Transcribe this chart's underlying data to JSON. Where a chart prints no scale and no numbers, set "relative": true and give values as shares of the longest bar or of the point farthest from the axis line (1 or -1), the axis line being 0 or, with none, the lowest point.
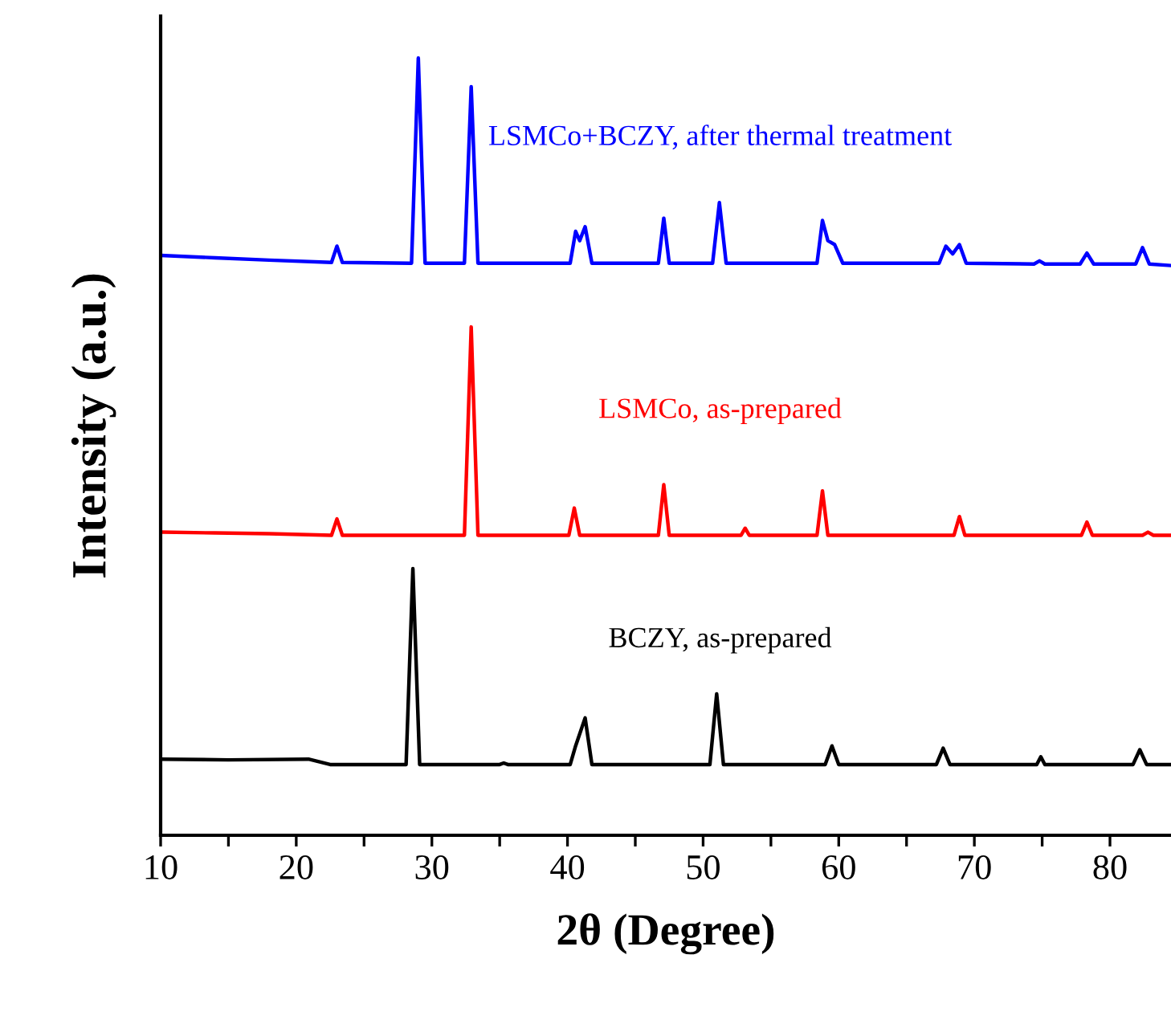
{
  "chart_data": {
    "type": "line",
    "relative": true,
    "xlabel": "2θ (Degree)",
    "ylabel": "Intensity (a.u.)",
    "xlim": [
      10,
      84.5
    ],
    "xticks": [
      10,
      {
        "value": 15,
        "label": null
      },
      20,
      {
        "value": 25,
        "label": null
      },
      30,
      {
        "value": 35,
        "label": null
      },
      40,
      {
        "value": 45,
        "label": null
      },
      50,
      {
        "value": 55,
        "label": null
      },
      60,
      {
        "value": 65,
        "label": null
      },
      70,
      {
        "value": 75,
        "label": null
      },
      80
    ],
    "tick_labels": "x",
    "grid": false,
    "legend": false,
    "marker": "none",
    "line_style": "solid",
    "series": [
      {
        "name": "LSMCo+BCZY, after thermal treatment",
        "color": "#0000ff",
        "x": [
          10,
          14,
          18,
          22.6,
          23.0,
          23.4,
          28.5,
          29.0,
          29.5,
          32.4,
          32.9,
          33.4,
          40.2,
          40.6,
          40.9,
          41.3,
          41.8,
          46.7,
          47.1,
          47.5,
          50.7,
          51.2,
          51.7,
          58.4,
          58.8,
          59.2,
          59.7,
          60.3,
          67.4,
          67.9,
          68.4,
          68.9,
          69.4,
          74.4,
          74.8,
          75.2,
          77.8,
          78.3,
          78.8,
          81.9,
          82.4,
          82.9,
          84.5
        ],
        "values": [
          0.746,
          0.743,
          0.74,
          0.737,
          0.758,
          0.737,
          0.736,
          1.0,
          0.736,
          0.736,
          0.963,
          0.736,
          0.736,
          0.777,
          0.765,
          0.783,
          0.736,
          0.736,
          0.794,
          0.736,
          0.736,
          0.814,
          0.736,
          0.736,
          0.791,
          0.765,
          0.76,
          0.736,
          0.736,
          0.758,
          0.748,
          0.76,
          0.736,
          0.735,
          0.739,
          0.735,
          0.735,
          0.749,
          0.735,
          0.735,
          0.756,
          0.735,
          0.733
        ]
      },
      {
        "name": "LSMCo, as-prepared",
        "color": "#ff0000",
        "x": [
          10,
          14,
          18,
          22.6,
          23.0,
          23.4,
          32.4,
          32.9,
          33.4,
          40.1,
          40.5,
          40.9,
          46.7,
          47.1,
          47.5,
          52.8,
          53.1,
          53.4,
          58.4,
          58.8,
          59.2,
          68.5,
          68.9,
          69.3,
          77.9,
          78.3,
          78.7,
          82.4,
          82.8,
          83.2,
          84.5
        ],
        "values": [
          0.39,
          0.389,
          0.388,
          0.386,
          0.407,
          0.386,
          0.386,
          0.654,
          0.386,
          0.386,
          0.421,
          0.386,
          0.386,
          0.451,
          0.386,
          0.386,
          0.395,
          0.386,
          0.386,
          0.443,
          0.386,
          0.386,
          0.41,
          0.386,
          0.386,
          0.403,
          0.386,
          0.386,
          0.39,
          0.386,
          0.386
        ]
      },
      {
        "name": "BCZY, as-prepared",
        "color": "#000000",
        "x": [
          10,
          15,
          20.9,
          22.5,
          28.1,
          28.6,
          29.1,
          35.0,
          35.3,
          35.6,
          40.2,
          40.6,
          41.3,
          41.8,
          50.5,
          51.0,
          51.5,
          59.0,
          59.5,
          60.0,
          67.2,
          67.7,
          68.2,
          74.6,
          74.9,
          75.2,
          81.7,
          82.2,
          82.7,
          84.5
        ],
        "values": [
          0.098,
          0.097,
          0.098,
          0.091,
          0.091,
          0.343,
          0.091,
          0.091,
          0.093,
          0.091,
          0.091,
          0.115,
          0.151,
          0.091,
          0.091,
          0.182,
          0.091,
          0.091,
          0.115,
          0.091,
          0.091,
          0.112,
          0.091,
          0.091,
          0.101,
          0.091,
          0.091,
          0.11,
          0.091,
          0.091
        ]
      }
    ]
  }
}
